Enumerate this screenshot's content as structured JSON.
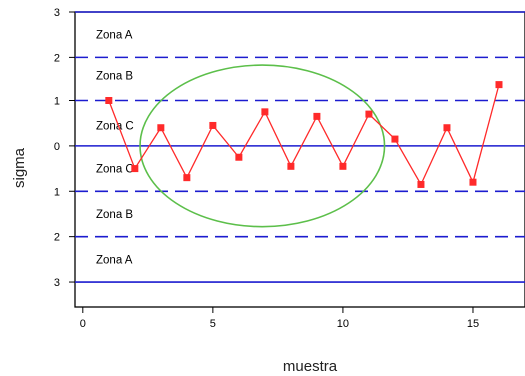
{
  "chart_data": {
    "type": "line",
    "title": "",
    "xlabel": "muestra",
    "ylabel": "sigma",
    "xlim": [
      -0.3,
      17
    ],
    "ylim": [
      -3.55,
      2.95
    ],
    "x_ticks": [
      0,
      5,
      10,
      15
    ],
    "y_ticks": [
      {
        "value": 2.95,
        "label": "3"
      },
      {
        "value": 1.95,
        "label": "2"
      },
      {
        "value": 1.0,
        "label": "1"
      },
      {
        "value": 0.0,
        "label": "0"
      },
      {
        "value": -1.0,
        "label": "1"
      },
      {
        "value": -2.0,
        "label": "2"
      },
      {
        "value": -3.0,
        "label": "3"
      }
    ],
    "control_lines": [
      {
        "value": 2.95,
        "style": "solid"
      },
      {
        "value": 1.95,
        "style": "dashed"
      },
      {
        "value": 1.0,
        "style": "dashed"
      },
      {
        "value": 0.0,
        "style": "solid"
      },
      {
        "value": -1.0,
        "style": "dashed"
      },
      {
        "value": -2.0,
        "style": "dashed"
      },
      {
        "value": -3.0,
        "style": "solid"
      }
    ],
    "zone_labels": [
      {
        "text": "Zona A",
        "y": 2.45
      },
      {
        "text": "Zona B",
        "y": 1.55
      },
      {
        "text": "Zona C",
        "y": 0.45
      },
      {
        "text": "Zona C",
        "y": -0.5
      },
      {
        "text": "Zona B",
        "y": -1.5
      },
      {
        "text": "Zona A",
        "y": -2.5
      }
    ],
    "series": [
      {
        "x": [
          1,
          2,
          3,
          4,
          5,
          6,
          7,
          8,
          9,
          10,
          11,
          12,
          13,
          14,
          15,
          16
        ],
        "values": [
          1.0,
          -0.5,
          0.4,
          -0.7,
          0.45,
          -0.25,
          0.75,
          -0.45,
          0.65,
          -0.45,
          0.7,
          0.15,
          -0.85,
          0.4,
          -0.8,
          1.35
        ]
      }
    ],
    "annotation": {
      "shape": "ellipse",
      "color": "#5cbf4a",
      "center": {
        "x": 6.9,
        "y": 0.0
      },
      "rx": 9.4,
      "ry": 1.78
    },
    "colors": {
      "control_lines": "#1c1ccf",
      "series": "#ff2a2a",
      "ellipse": "#5cbf4a"
    }
  }
}
